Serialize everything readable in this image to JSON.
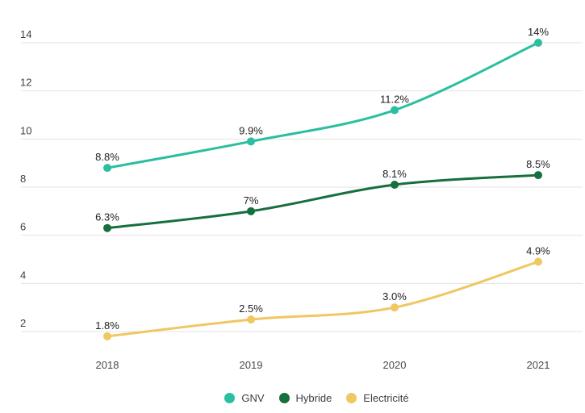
{
  "chart_data": {
    "type": "line",
    "title": "",
    "xlabel": "",
    "ylabel": "",
    "categories": [
      "2018",
      "2019",
      "2020",
      "2021"
    ],
    "series": [
      {
        "name": "GNV",
        "color": "#2bbea1",
        "values": [
          8.8,
          9.9,
          11.2,
          14
        ],
        "point_labels": [
          "8.8%",
          "9.9%",
          "11.2%",
          "14%"
        ]
      },
      {
        "name": "Hybride",
        "color": "#166f3d",
        "values": [
          6.3,
          7,
          8.1,
          8.5
        ],
        "point_labels": [
          "6.3%",
          "7%",
          "8.1%",
          "8.5%"
        ]
      },
      {
        "name": "Electricité",
        "color": "#efc763",
        "values": [
          1.8,
          2.5,
          3.0,
          4.9
        ],
        "point_labels": [
          "1.8%",
          "2.5%",
          "3.0%",
          "4.9%"
        ]
      }
    ],
    "y_ticks": [
      2,
      4,
      6,
      8,
      10,
      12,
      14
    ],
    "y_tick_labels": [
      "2",
      "4",
      "6",
      "8",
      "10",
      "12",
      "14"
    ],
    "ylim": [
      2,
      14
    ],
    "grid": true,
    "curve": "smooth",
    "legend_position": "bottom",
    "legend_entries": [
      "GNV",
      "Hybride",
      "Electricité"
    ]
  },
  "colors": {
    "background": "#ffffff",
    "gridline": "#e3e3e3",
    "y_tick_text": "#404040",
    "x_tick_text": "#4a4a4a",
    "data_label_text": "#1f1f1f",
    "legend_text": "#3c4043"
  }
}
